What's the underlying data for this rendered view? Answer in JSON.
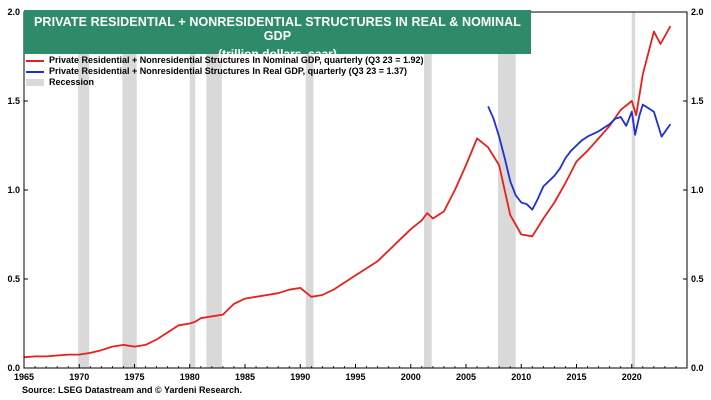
{
  "title": {
    "line1": "PRIVATE RESIDENTIAL + NONRESIDENTIAL STRUCTURES  IN REAL & NOMINAL GDP",
    "line2": "(trillion dollars, saar)"
  },
  "legend": [
    {
      "label": "Private Residential + Nonresidential Structures In Nominal GDP, quarterly (Q3 23 = 1.92)",
      "color": "#e8201c"
    },
    {
      "label": "Private Residential + Nonresidential Structures In Real GDP, quarterly (Q3 23 = 1.37)",
      "color": "#1f2fd6"
    },
    {
      "label": "Recession",
      "color": "#d9d9d9"
    }
  ],
  "source": "Source: LSEG Datastream and © Yardeni Research.",
  "chart_data": {
    "type": "line",
    "xlim": [
      1965,
      2025
    ],
    "ylim": [
      0,
      2.0
    ],
    "x_ticks": [
      1965,
      1970,
      1975,
      1980,
      1985,
      1990,
      1995,
      2000,
      2005,
      2010,
      2015,
      2020
    ],
    "y_ticks": [
      "0.0",
      "0.5",
      "1.0",
      "1.5",
      "2.0"
    ],
    "y_tick_values": [
      0,
      0.5,
      1.0,
      1.5,
      2.0
    ],
    "grid": false,
    "legend_position": "top-left",
    "recessions": [
      [
        1969.9,
        1970.9
      ],
      [
        1973.9,
        1975.2
      ],
      [
        1980.0,
        1980.5
      ],
      [
        1981.5,
        1982.9
      ],
      [
        1990.5,
        1991.2
      ],
      [
        2001.2,
        2001.9
      ],
      [
        2007.9,
        2009.5
      ],
      [
        2020.0,
        2020.3
      ]
    ],
    "series": [
      {
        "name": "Private Residential + Nonresidential Structures In Nominal GDP, quarterly (Q3 23 = 1.92)",
        "color": "#e8201c",
        "points": [
          [
            1965,
            0.06
          ],
          [
            1966,
            0.065
          ],
          [
            1967,
            0.065
          ],
          [
            1968,
            0.07
          ],
          [
            1969,
            0.075
          ],
          [
            1970,
            0.075
          ],
          [
            1971,
            0.085
          ],
          [
            1972,
            0.1
          ],
          [
            1973,
            0.12
          ],
          [
            1974,
            0.13
          ],
          [
            1975,
            0.12
          ],
          [
            1976,
            0.13
          ],
          [
            1977,
            0.16
          ],
          [
            1978,
            0.2
          ],
          [
            1979,
            0.24
          ],
          [
            1980,
            0.25
          ],
          [
            1980.5,
            0.26
          ],
          [
            1981,
            0.28
          ],
          [
            1982,
            0.29
          ],
          [
            1983,
            0.3
          ],
          [
            1984,
            0.36
          ],
          [
            1985,
            0.39
          ],
          [
            1986,
            0.4
          ],
          [
            1987,
            0.41
          ],
          [
            1988,
            0.42
          ],
          [
            1989,
            0.44
          ],
          [
            1990,
            0.45
          ],
          [
            1991,
            0.4
          ],
          [
            1992,
            0.41
          ],
          [
            1993,
            0.44
          ],
          [
            1994,
            0.48
          ],
          [
            1995,
            0.52
          ],
          [
            1996,
            0.56
          ],
          [
            1997,
            0.6
          ],
          [
            1998,
            0.66
          ],
          [
            1999,
            0.72
          ],
          [
            2000,
            0.78
          ],
          [
            2001,
            0.83
          ],
          [
            2001.5,
            0.87
          ],
          [
            2002,
            0.84
          ],
          [
            2003,
            0.88
          ],
          [
            2004,
            1.0
          ],
          [
            2005,
            1.14
          ],
          [
            2006,
            1.29
          ],
          [
            2007,
            1.24
          ],
          [
            2008,
            1.14
          ],
          [
            2009,
            0.86
          ],
          [
            2010,
            0.75
          ],
          [
            2011,
            0.74
          ],
          [
            2012,
            0.84
          ],
          [
            2013,
            0.93
          ],
          [
            2014,
            1.04
          ],
          [
            2015,
            1.16
          ],
          [
            2016,
            1.22
          ],
          [
            2017,
            1.29
          ],
          [
            2018,
            1.36
          ],
          [
            2019,
            1.45
          ],
          [
            2020,
            1.5
          ],
          [
            2020.4,
            1.42
          ],
          [
            2021,
            1.65
          ],
          [
            2022,
            1.89
          ],
          [
            2022.6,
            1.82
          ],
          [
            2023.5,
            1.92
          ]
        ]
      },
      {
        "name": "Private Residential + Nonresidential Structures In Real GDP, quarterly (Q3 23 = 1.37)",
        "color": "#1f2fd6",
        "points": [
          [
            2007,
            1.47
          ],
          [
            2007.5,
            1.4
          ],
          [
            2008,
            1.3
          ],
          [
            2008.5,
            1.18
          ],
          [
            2009,
            1.05
          ],
          [
            2009.5,
            0.97
          ],
          [
            2010,
            0.93
          ],
          [
            2010.5,
            0.92
          ],
          [
            2011,
            0.89
          ],
          [
            2011.5,
            0.95
          ],
          [
            2012,
            1.02
          ],
          [
            2012.5,
            1.05
          ],
          [
            2013,
            1.08
          ],
          [
            2013.5,
            1.12
          ],
          [
            2014,
            1.18
          ],
          [
            2014.5,
            1.22
          ],
          [
            2015,
            1.25
          ],
          [
            2015.5,
            1.28
          ],
          [
            2016,
            1.3
          ],
          [
            2017,
            1.33
          ],
          [
            2018,
            1.37
          ],
          [
            2018.5,
            1.4
          ],
          [
            2019,
            1.41
          ],
          [
            2019.5,
            1.36
          ],
          [
            2020,
            1.44
          ],
          [
            2020.3,
            1.31
          ],
          [
            2020.7,
            1.42
          ],
          [
            2021,
            1.48
          ],
          [
            2021.5,
            1.46
          ],
          [
            2022,
            1.44
          ],
          [
            2022.7,
            1.3
          ],
          [
            2023.5,
            1.37
          ]
        ]
      }
    ]
  }
}
